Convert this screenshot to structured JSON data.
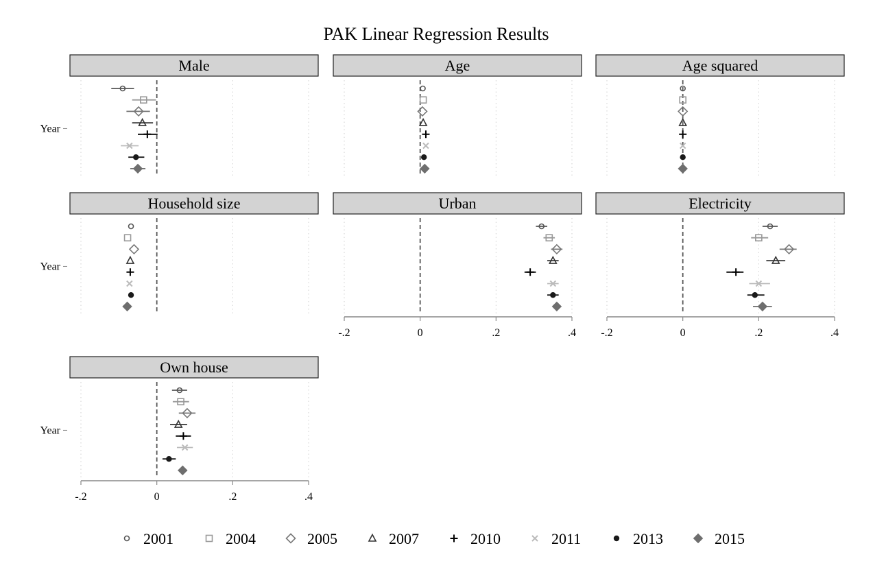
{
  "chart_data": {
    "type": "scatter",
    "title": "PAK Linear Regression Results",
    "y_category_label": "Year",
    "x_ticks": [
      -0.2,
      0,
      0.2,
      0.4
    ],
    "x_tick_labels": [
      "-.2",
      "0",
      ".2",
      ".4"
    ],
    "xlim": [
      -0.2,
      0.4
    ],
    "reference_line": 0,
    "grid": "vertical dotted",
    "legend_position": "bottom",
    "series": [
      {
        "name": "2001",
        "marker": "circle-small",
        "color": "#555555"
      },
      {
        "name": "2004",
        "marker": "square",
        "color": "#999999"
      },
      {
        "name": "2005",
        "marker": "diamond",
        "color": "#777777"
      },
      {
        "name": "2007",
        "marker": "triangle",
        "color": "#333333"
      },
      {
        "name": "2010",
        "marker": "plus",
        "color": "#000000"
      },
      {
        "name": "2011",
        "marker": "x",
        "color": "#bbbbbb"
      },
      {
        "name": "2013",
        "marker": "dot",
        "color": "#1a1a1a"
      },
      {
        "name": "2015",
        "marker": "diamond-filled",
        "color": "#6e6e6e"
      }
    ],
    "panels": [
      {
        "title": "Male",
        "show_x_axis": false,
        "estimates": [
          -0.09,
          -0.035,
          -0.048,
          -0.038,
          -0.025,
          -0.072,
          -0.055,
          -0.05
        ],
        "ci_low": [
          -0.12,
          -0.065,
          -0.08,
          -0.065,
          -0.05,
          -0.095,
          -0.075,
          -0.07
        ],
        "ci_high": [
          -0.06,
          -0.002,
          -0.018,
          -0.01,
          0.002,
          -0.048,
          -0.033,
          -0.03
        ]
      },
      {
        "title": "Age",
        "show_x_axis": false,
        "estimates": [
          0.007,
          0.008,
          0.006,
          0.008,
          0.015,
          0.015,
          0.01,
          0.012
        ],
        "ci_low": [
          0.004,
          0.005,
          0.003,
          0.005,
          0.012,
          0.012,
          0.007,
          0.008
        ],
        "ci_high": [
          0.01,
          0.011,
          0.009,
          0.011,
          0.018,
          0.018,
          0.013,
          0.016
        ],
        "ci_hidden": true
      },
      {
        "title": "Age squared",
        "show_x_axis": false,
        "estimates": [
          0,
          0,
          0,
          0,
          0,
          0,
          0,
          0
        ],
        "ci_low": [
          0,
          0,
          0,
          0,
          0,
          0,
          0,
          0
        ],
        "ci_high": [
          0,
          0,
          0,
          0,
          0,
          0,
          0,
          0
        ],
        "ci_hidden": true
      },
      {
        "title": "Household size",
        "show_x_axis": false,
        "estimates": [
          -0.068,
          -0.077,
          -0.06,
          -0.07,
          -0.07,
          -0.072,
          -0.068,
          -0.078
        ],
        "ci_low": [
          -0.068,
          -0.077,
          -0.06,
          -0.07,
          -0.07,
          -0.072,
          -0.068,
          -0.078
        ],
        "ci_high": [
          -0.068,
          -0.077,
          -0.06,
          -0.07,
          -0.07,
          -0.072,
          -0.068,
          -0.078
        ],
        "ci_hidden": true
      },
      {
        "title": "Urban",
        "show_x_axis": true,
        "estimates": [
          0.32,
          0.34,
          0.36,
          0.35,
          0.29,
          0.35,
          0.35,
          0.36
        ],
        "ci_low": [
          0.305,
          0.325,
          0.345,
          0.335,
          0.275,
          0.335,
          0.335,
          0.35
        ],
        "ci_high": [
          0.335,
          0.355,
          0.375,
          0.365,
          0.305,
          0.365,
          0.365,
          0.372
        ]
      },
      {
        "title": "Electricity",
        "show_x_axis": true,
        "estimates": [
          0.23,
          0.2,
          0.28,
          0.245,
          0.14,
          0.2,
          0.19,
          0.21
        ],
        "ci_low": [
          0.21,
          0.18,
          0.255,
          0.22,
          0.115,
          0.175,
          0.17,
          0.185
        ],
        "ci_high": [
          0.25,
          0.225,
          0.3,
          0.27,
          0.16,
          0.23,
          0.215,
          0.235
        ]
      },
      {
        "title": "Own house",
        "show_x_axis": true,
        "estimates": [
          0.06,
          0.063,
          0.08,
          0.057,
          0.07,
          0.074,
          0.032,
          0.068
        ],
        "ci_low": [
          0.04,
          0.042,
          0.058,
          0.035,
          0.05,
          0.053,
          0.015,
          0.056
        ],
        "ci_high": [
          0.08,
          0.085,
          0.102,
          0.08,
          0.09,
          0.095,
          0.05,
          0.08
        ]
      }
    ]
  }
}
